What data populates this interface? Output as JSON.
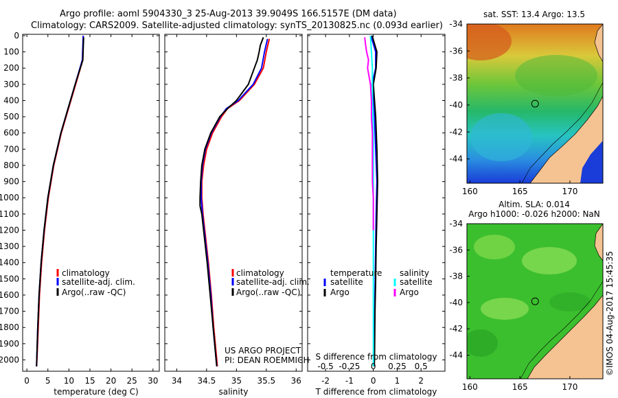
{
  "header": {
    "line1": "Argo profile: aoml 5904330_3 25-Aug-2013 39.9049S 166.5157E (DM data)",
    "line2": "Climatology: CARS2009. Satellite-adjusted climatology: synTS_20130825.nc (0.093d earlier)"
  },
  "colors": {
    "climatology": "#ff0000",
    "satellite": "#0000ff",
    "argo": "#000000",
    "satellite_salinity": "#00ffff",
    "argo_salinity": "#ff00ff",
    "land": "#f5c391"
  },
  "chart_data": [
    {
      "type": "line",
      "id": "temperature",
      "xlabel": "temperature (deg C)",
      "ylabel": "",
      "xlim": [
        -1,
        31.5
      ],
      "ylim": [
        2070,
        0
      ],
      "xticks": [
        0,
        5,
        10,
        15,
        20,
        25,
        30
      ],
      "yticks": [
        0,
        100,
        200,
        300,
        400,
        500,
        600,
        700,
        800,
        900,
        1000,
        1100,
        1200,
        1300,
        1400,
        1500,
        1600,
        1700,
        1800,
        1900,
        2000
      ],
      "legend": [
        "climatology",
        "satellite-adj. clim.",
        "Argo(..raw -QC)"
      ],
      "legend_position": "lower-right",
      "series": [
        {
          "name": "climatology",
          "color": "#ff0000",
          "depth": [
            0,
            150,
            300,
            450,
            600,
            800,
            1000,
            1200,
            1400,
            1600,
            1800,
            2000,
            2040
          ],
          "values": [
            13.4,
            13.3,
            11.6,
            9.9,
            8.2,
            6.4,
            5.1,
            4.2,
            3.5,
            3.0,
            2.7,
            2.4,
            2.3
          ]
        },
        {
          "name": "satellite-adj. clim.",
          "color": "#0000ff",
          "depth": [
            0,
            150,
            300,
            450,
            600,
            800,
            1000,
            1200,
            1400,
            1600,
            1800,
            2000,
            2040
          ],
          "values": [
            13.4,
            13.2,
            11.5,
            9.8,
            8.1,
            6.3,
            5.0,
            4.1,
            3.4,
            2.9,
            2.6,
            2.35,
            2.3
          ]
        },
        {
          "name": "Argo(..raw -QC)",
          "color": "#000000",
          "depth": [
            10,
            150,
            300,
            450,
            600,
            800,
            1000,
            1200,
            1400,
            1600,
            1800,
            2000,
            2040
          ],
          "values": [
            13.5,
            13.3,
            11.5,
            9.8,
            8.1,
            6.3,
            5.0,
            4.1,
            3.4,
            2.9,
            2.6,
            2.35,
            2.3
          ]
        }
      ]
    },
    {
      "type": "line",
      "id": "salinity",
      "xlabel": "salinity",
      "ylabel": "",
      "xlim": [
        33.8,
        36.1
      ],
      "ylim": [
        2070,
        0
      ],
      "xticks": [
        34,
        34.5,
        35,
        35.5,
        36
      ],
      "legend": [
        "climatology",
        "satellite-adj. clim.",
        "Argo(..raw -QC)"
      ],
      "legend_position": "lower-right",
      "annotation": [
        "US ARGO PROJECT",
        "PI: DEAN ROEMMICH"
      ],
      "series": [
        {
          "name": "climatology",
          "color": "#ff0000",
          "depth": [
            20,
            100,
            200,
            300,
            400,
            450,
            500,
            600,
            700,
            800,
            900,
            1000,
            1100,
            1200,
            1400,
            1600,
            1800,
            2000,
            2040
          ],
          "values": [
            35.55,
            35.5,
            35.45,
            35.3,
            35.05,
            34.85,
            34.75,
            34.6,
            34.5,
            34.45,
            34.42,
            34.42,
            34.44,
            34.47,
            34.53,
            34.58,
            34.62,
            34.67,
            34.68
          ]
        },
        {
          "name": "satellite-adj. clim.",
          "color": "#0000ff",
          "depth": [
            20,
            100,
            200,
            300,
            400,
            450,
            500,
            600,
            700,
            800,
            900,
            1000,
            1100,
            1200,
            1400,
            1600,
            1800,
            2000,
            2040
          ],
          "values": [
            35.52,
            35.47,
            35.42,
            35.28,
            35.03,
            34.83,
            34.73,
            34.58,
            34.48,
            34.43,
            34.41,
            34.41,
            34.43,
            34.46,
            34.52,
            34.57,
            34.61,
            34.66,
            34.67
          ]
        },
        {
          "name": "Argo(..raw -QC)",
          "color": "#000000",
          "depth": [
            10,
            60,
            100,
            150,
            200,
            300,
            400,
            450,
            500,
            600,
            700,
            800,
            900,
            1000,
            1050,
            1100,
            1200,
            1400,
            1600,
            1800,
            2000,
            2040
          ],
          "values": [
            35.45,
            35.4,
            35.38,
            35.35,
            35.3,
            35.2,
            35.0,
            34.85,
            34.72,
            34.57,
            34.47,
            34.42,
            34.4,
            34.39,
            34.39,
            34.42,
            34.45,
            34.51,
            34.56,
            34.61,
            34.66,
            34.67
          ]
        }
      ]
    },
    {
      "type": "line",
      "id": "difference",
      "xlabel": "T difference from climatology",
      "top_axis_label": "S difference from climatology",
      "ylabel": "",
      "xlim": [
        -2.75,
        3.0
      ],
      "ylim": [
        2070,
        0
      ],
      "xticks": [
        -2,
        -1,
        0,
        1,
        2
      ],
      "xtick_labels": [
        "-2",
        "-1",
        "0",
        "1",
        "2"
      ],
      "s_ticks": [
        -0.5,
        -0.25,
        0,
        0.25,
        0.5
      ],
      "s_tick_labels": [
        "-0.5",
        "-0.25",
        "0",
        "0.25",
        "0.5"
      ],
      "legend_left": {
        "heading": "temperature",
        "items": [
          "satellite",
          "Argo"
        ]
      },
      "legend_right": {
        "heading": "salinity",
        "items": [
          "satellite",
          "Argo"
        ]
      },
      "series": [
        {
          "name": "temperature satellite",
          "color": "#0000ff",
          "depth": [
            0,
            100,
            200,
            300,
            400,
            500,
            700,
            900,
            1100,
            1300,
            1500,
            1700,
            2000,
            2040
          ],
          "values": [
            -0.1,
            0.1,
            0.1,
            -0.05,
            0.02,
            0.05,
            0.1,
            0.15,
            0.12,
            0.1,
            0.08,
            0.06,
            0.04,
            0.03
          ]
        },
        {
          "name": "temperature Argo",
          "color": "#000000",
          "depth": [
            0,
            100,
            200,
            300,
            400,
            500,
            700,
            900,
            1100,
            1300,
            1500,
            1700,
            2000,
            2040
          ],
          "values": [
            -0.05,
            0.15,
            0.12,
            0.0,
            0.05,
            0.1,
            0.15,
            0.18,
            0.15,
            0.12,
            0.1,
            0.07,
            0.05,
            0.04
          ]
        },
        {
          "name": "salinity satellite",
          "color": "#00ffff",
          "depth": [
            0,
            100,
            200,
            400,
            600,
            800,
            1000,
            1200,
            1400,
            1600,
            1800,
            2000,
            2040
          ],
          "values": [
            -0.03,
            -0.02,
            -0.01,
            -0.01,
            0,
            0,
            0,
            0,
            0,
            0,
            0,
            0,
            0
          ]
        },
        {
          "name": "salinity Argo",
          "color": "#ff00ff",
          "depth": [
            10,
            60,
            100,
            150,
            200,
            300,
            400,
            500,
            600,
            700,
            800,
            900,
            1000,
            1100,
            1200
          ],
          "values": [
            -0.09,
            -0.08,
            -0.07,
            -0.05,
            -0.06,
            -0.03,
            -0.02,
            -0.02,
            -0.01,
            -0.01,
            -0.01,
            -0.01,
            0,
            0,
            0
          ]
        }
      ]
    },
    {
      "type": "heatmap",
      "id": "sst-map",
      "title": "sat. SST: 13.4  Argo: 13.5",
      "xticks": [
        160,
        165,
        170
      ],
      "yticks": [
        -34,
        -36,
        -38,
        -40,
        -42,
        -44
      ],
      "xlim": [
        159.7,
        173.3
      ],
      "ylim": [
        -45.8,
        -34
      ],
      "marker": {
        "lon": 166.5157,
        "lat": -39.9049
      }
    },
    {
      "type": "heatmap",
      "id": "sla-map",
      "title_line1": "Altim. SLA: 0.014",
      "title_line2": "Argo h1000: -0.026  h2000: NaN",
      "xticks": [
        160,
        165,
        170
      ],
      "yticks": [
        -34,
        -36,
        -38,
        -40,
        -42,
        -44
      ],
      "xlim": [
        159.7,
        173.3
      ],
      "ylim": [
        -45.8,
        -34
      ],
      "marker": {
        "lon": 166.5157,
        "lat": -39.9049
      }
    }
  ],
  "footer": {
    "credit": "©IMOS 04-Aug-2017 15:45:35"
  }
}
